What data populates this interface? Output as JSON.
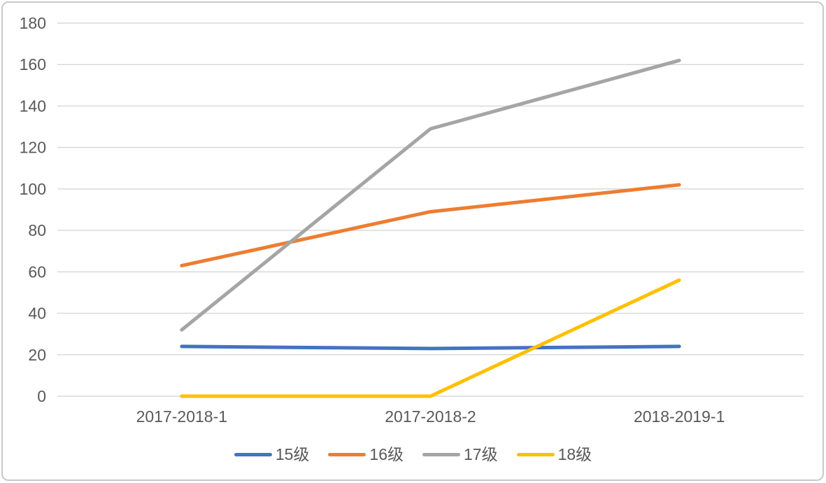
{
  "chart_data": {
    "type": "line",
    "title": "",
    "xlabel": "",
    "ylabel": "",
    "categories": [
      "2017-2018-1",
      "2017-2018-2",
      "2018-2019-1"
    ],
    "series": [
      {
        "name": "15级",
        "color": "#4472C4",
        "values": [
          24,
          23,
          24
        ]
      },
      {
        "name": "16级",
        "color": "#ED7D31",
        "values": [
          63,
          89,
          102
        ]
      },
      {
        "name": "17级",
        "color": "#A5A5A5",
        "values": [
          32,
          129,
          162
        ]
      },
      {
        "name": "18级",
        "color": "#FFC000",
        "values": [
          0,
          0,
          56
        ]
      }
    ],
    "ylim": [
      0,
      180
    ],
    "ytick_step": 20,
    "yticks": [
      0,
      20,
      40,
      60,
      80,
      100,
      120,
      140,
      160,
      180
    ],
    "grid": true,
    "legend_position": "bottom"
  },
  "styles": {
    "background_color": "#FFFFFF",
    "gridline_color": "#D9D9D9",
    "axis_label_color": "#595959",
    "frame_border_color": "#C9C9C9"
  }
}
